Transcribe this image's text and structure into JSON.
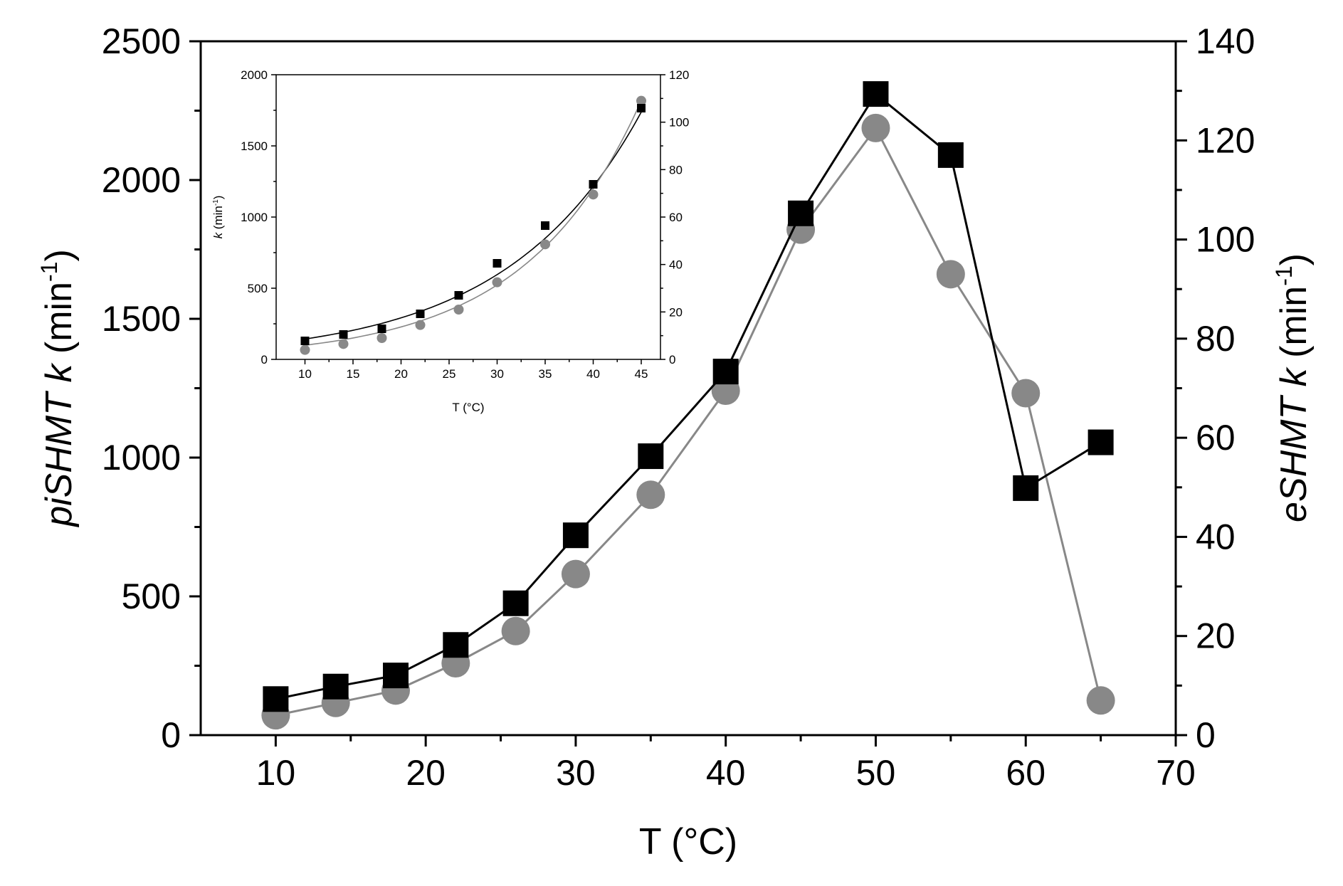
{
  "chart_data": [
    {
      "type": "line",
      "title": "",
      "xlabel": "T (°C)",
      "ylabel_left": {
        "italic": "piSHMT k",
        "unit": " (min",
        "sup": "-1",
        "close": ")"
      },
      "ylabel_right": {
        "italic": "eSHMT k",
        "unit": " (min",
        "sup": "-1",
        "close": ")"
      },
      "xlim": [
        5,
        70
      ],
      "ylim_left": [
        0,
        2500
      ],
      "ylim_right": [
        0,
        140
      ],
      "x_ticks": [
        10,
        20,
        30,
        40,
        50,
        60,
        70
      ],
      "y_left_ticks": [
        0,
        500,
        1000,
        1500,
        2000,
        2500
      ],
      "y_right_ticks": [
        0,
        20,
        40,
        60,
        80,
        100,
        120,
        140
      ],
      "series": [
        {
          "name": "piSHMT",
          "axis": "left",
          "marker": "square",
          "color": "#000000",
          "x": [
            10,
            14,
            18,
            22,
            26,
            30,
            35,
            40,
            45,
            50,
            55,
            60,
            65
          ],
          "y": [
            130,
            175,
            215,
            325,
            475,
            720,
            1005,
            1310,
            1880,
            2310,
            2090,
            890,
            1055
          ]
        },
        {
          "name": "eSHMT",
          "axis": "right",
          "marker": "circle",
          "color": "#888888",
          "x": [
            10,
            14,
            18,
            22,
            26,
            30,
            35,
            40,
            45,
            50,
            55,
            60,
            65
          ],
          "y": [
            4,
            6.5,
            9,
            14.5,
            21,
            32.5,
            48.5,
            69.5,
            102,
            122.5,
            93,
            69,
            7
          ]
        }
      ]
    },
    {
      "type": "scatter",
      "title": "",
      "note": "inset with exponential fit curves",
      "xlabel": "T (°C)",
      "ylabel_left": {
        "italic": "k",
        "unit": " (min",
        "sup": "-1",
        "close": ")"
      },
      "xlim": [
        7,
        47
      ],
      "ylim_left": [
        0,
        2000
      ],
      "ylim_right": [
        0,
        120
      ],
      "x_ticks": [
        10,
        15,
        20,
        25,
        30,
        35,
        40,
        45
      ],
      "y_left_ticks": [
        0,
        500,
        1000,
        1500,
        2000
      ],
      "y_right_ticks": [
        0,
        20,
        40,
        60,
        80,
        100,
        120
      ],
      "series": [
        {
          "name": "piSHMT",
          "axis": "left",
          "marker": "square",
          "color": "#000000",
          "x": [
            10,
            14,
            18,
            22,
            26,
            30,
            35,
            40,
            45
          ],
          "y": [
            130,
            175,
            215,
            320,
            450,
            675,
            940,
            1230,
            1765
          ]
        },
        {
          "name": "eSHMT",
          "axis": "right",
          "marker": "circle",
          "color": "#888888",
          "x": [
            10,
            14,
            18,
            22,
            26,
            30,
            35,
            40,
            45
          ],
          "y": [
            4,
            6.5,
            9,
            14.5,
            21,
            32.5,
            48.5,
            69.5,
            109
          ]
        }
      ],
      "fits": [
        {
          "name": "piSHMT fit",
          "axis": "left",
          "color": "#000000",
          "a": 70.0,
          "b": 0.07137,
          "x_range": [
            10,
            45
          ]
        },
        {
          "name": "eSHMT fit",
          "axis": "right",
          "color": "#888888",
          "a": 2.6,
          "b": 0.08303,
          "x_range": [
            10,
            45
          ]
        }
      ]
    }
  ]
}
